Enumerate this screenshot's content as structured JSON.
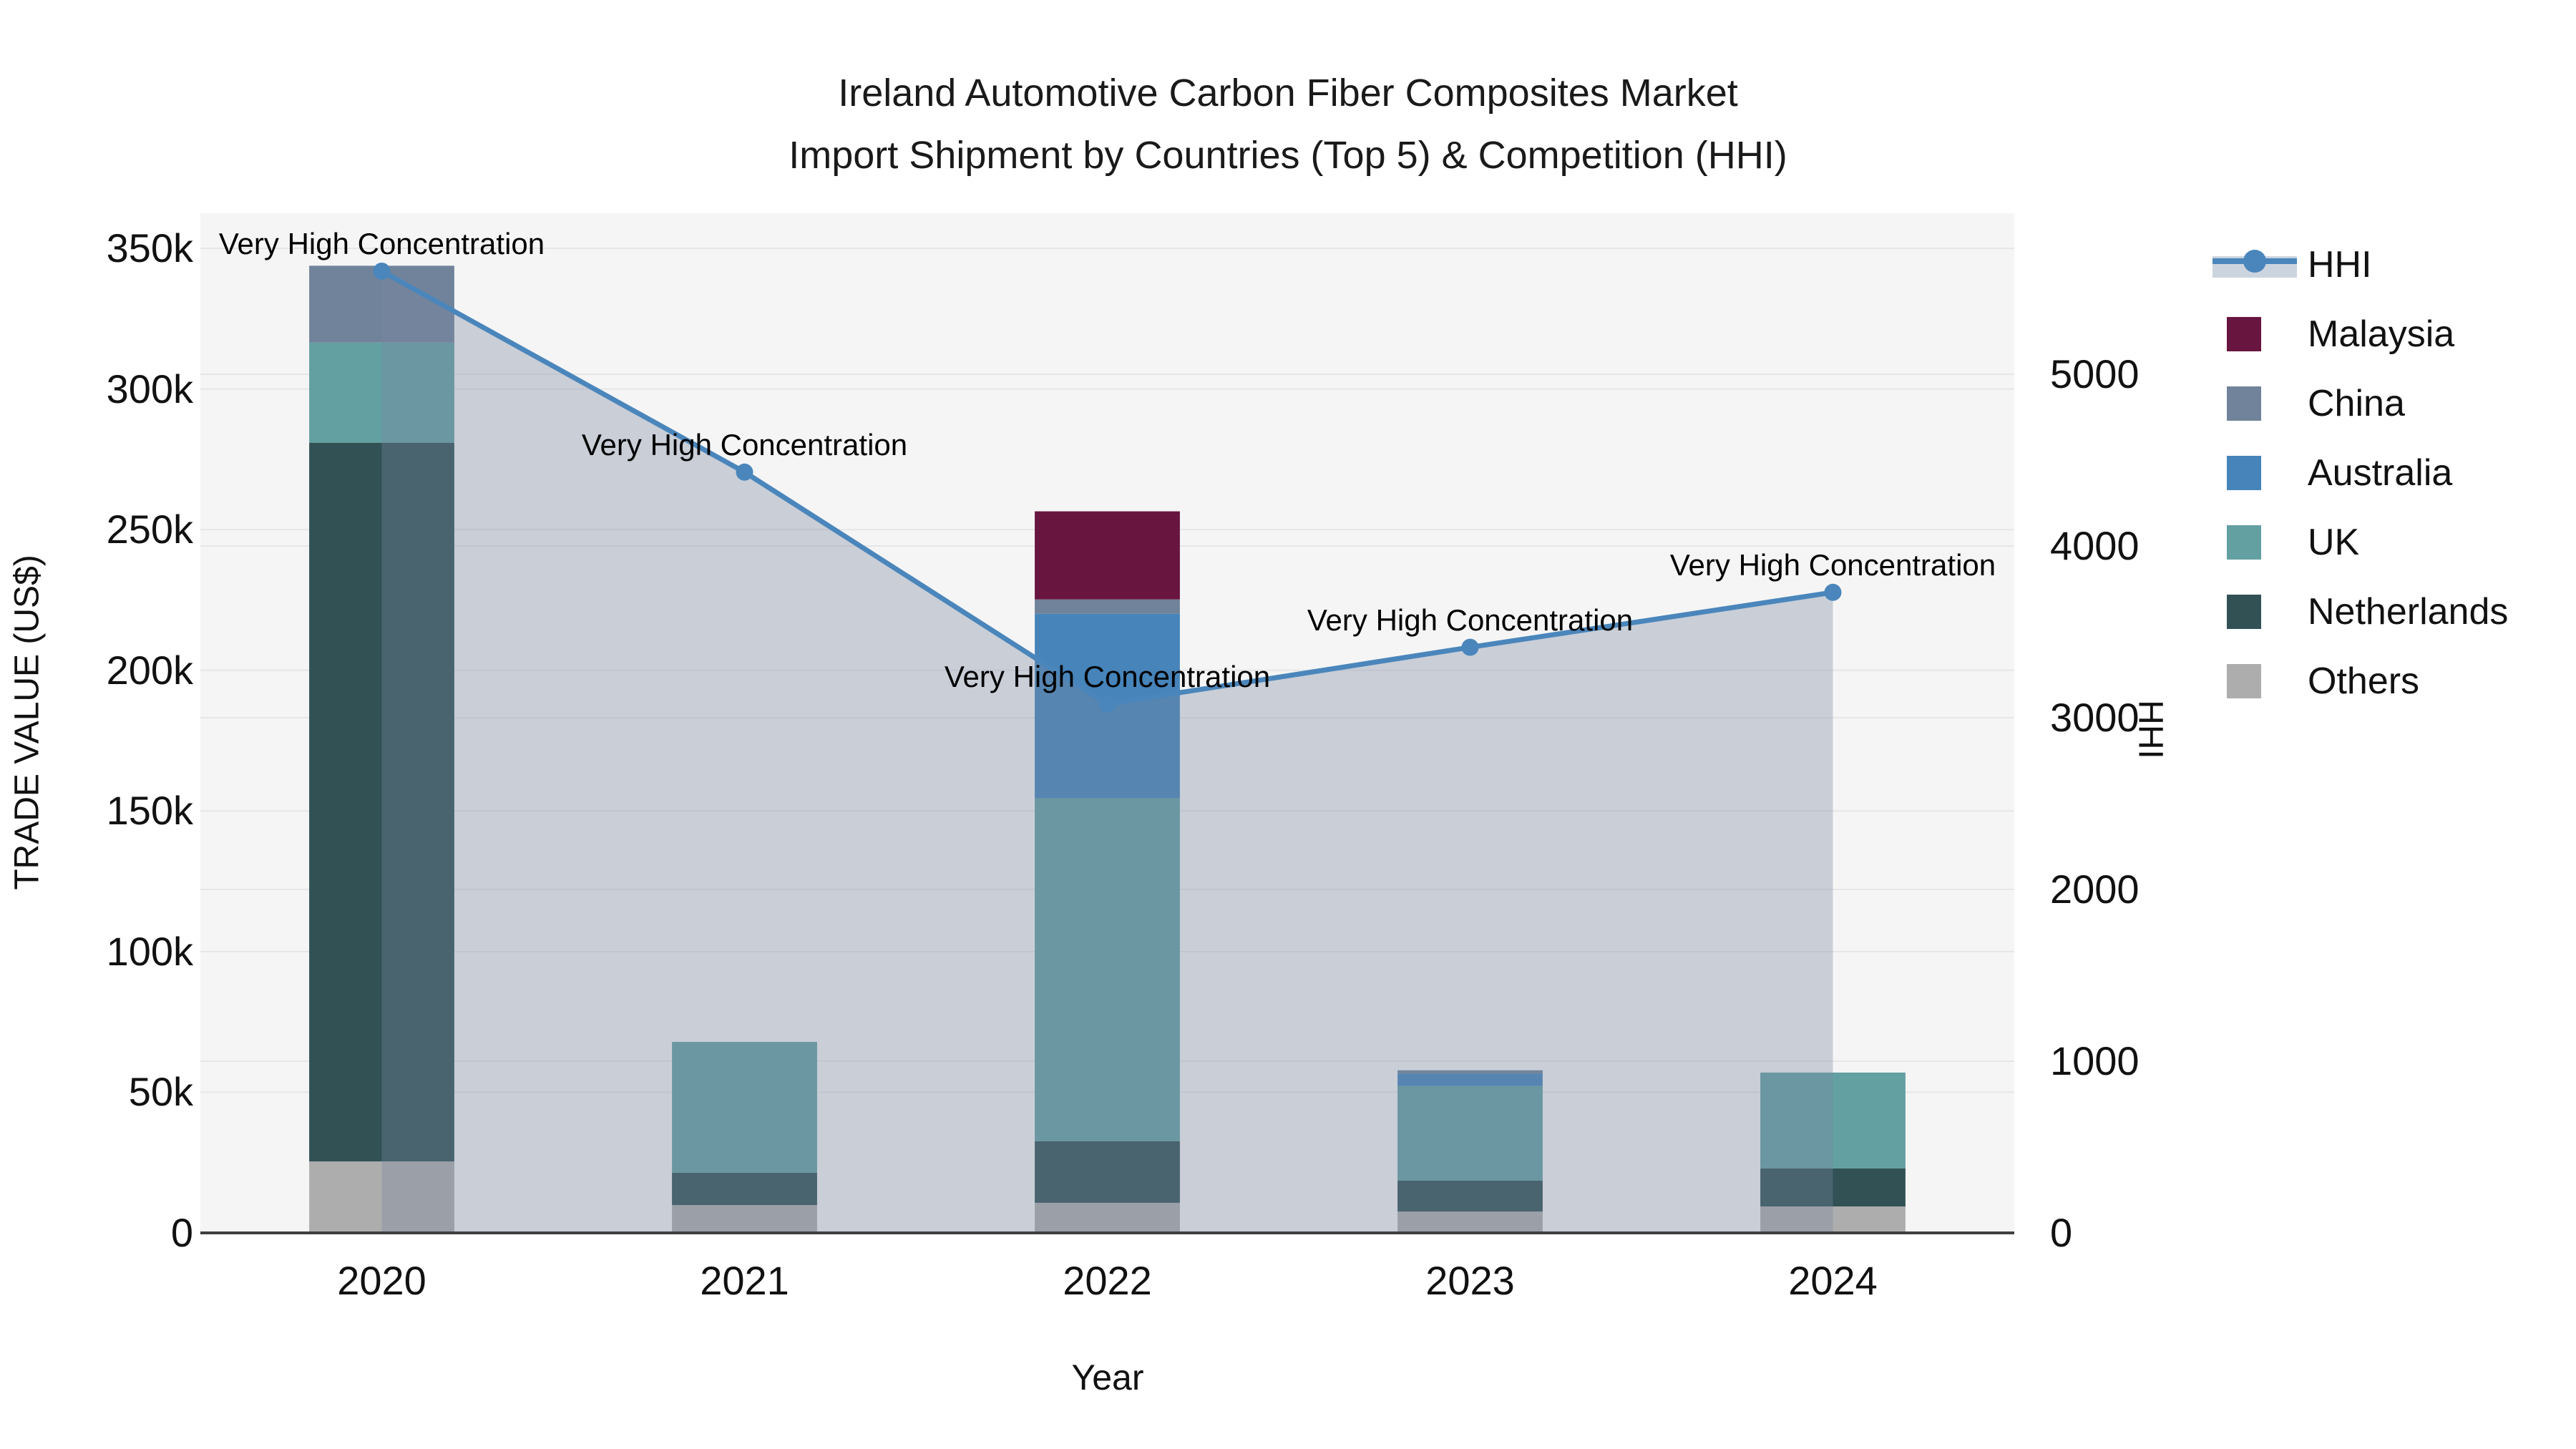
{
  "title": {
    "line1": "Ireland Automotive Carbon Fiber Composites Market",
    "line2": "Import Shipment by Countries (Top 5) & Competition (HHI)"
  },
  "axes": {
    "x": {
      "title": "Year",
      "categories": [
        "2020",
        "2021",
        "2022",
        "2023",
        "2024"
      ]
    },
    "y_left": {
      "title": "TRADE VALUE (US$)",
      "tick_labels": [
        "0",
        "50k",
        "100k",
        "150k",
        "200k",
        "250k",
        "300k",
        "350k"
      ],
      "tick_values": [
        0,
        50000,
        100000,
        150000,
        200000,
        250000,
        300000,
        350000
      ]
    },
    "y_right": {
      "title": "HHI",
      "tick_labels": [
        "0",
        "1000",
        "2000",
        "3000",
        "4000",
        "5000"
      ],
      "tick_values": [
        0,
        1000,
        2000,
        3000,
        4000,
        5000
      ]
    }
  },
  "chart_data": {
    "type": "bar+line",
    "title": "Ireland Automotive Carbon Fiber Composites Market Import Shipment by Countries (Top 5) & Competition (HHI)",
    "xlabel": "Year",
    "ylabel": "TRADE VALUE (US$)",
    "y2label": "HHI",
    "ylim": [
      0,
      350000
    ],
    "y2lim": [
      0,
      5000
    ],
    "grid": true,
    "legend_position": "right",
    "categories": [
      "2020",
      "2021",
      "2022",
      "2023",
      "2024"
    ],
    "bar_mode": "stacked",
    "series": [
      {
        "name": "Others",
        "color": "#adadad",
        "values": [
          25400,
          9900,
          10700,
          7600,
          9400
        ]
      },
      {
        "name": "Netherlands",
        "color": "#315155",
        "values": [
          255500,
          11500,
          21900,
          11000,
          13500
        ]
      },
      {
        "name": "UK",
        "color": "#63a0a2",
        "values": [
          35600,
          46500,
          121900,
          33600,
          34100
        ]
      },
      {
        "name": "Australia",
        "color": "#4684ba",
        "values": [
          0,
          0,
          65600,
          4500,
          0
        ]
      },
      {
        "name": "China",
        "color": "#71839a",
        "values": [
          27300,
          0,
          5100,
          1100,
          0
        ]
      },
      {
        "name": "Malaysia",
        "color": "#681540",
        "values": [
          0,
          0,
          31300,
          0,
          0
        ]
      }
    ],
    "line": {
      "name": "HHI",
      "axis": "right",
      "values": [
        5600,
        4430,
        3080,
        3410,
        3730
      ],
      "color": "#4a86bb",
      "area_fill": "rgba(120,135,160,0.35)"
    },
    "annotations": [
      {
        "text": "Very High Concentration",
        "category": "2020"
      },
      {
        "text": "Very High Concentration",
        "category": "2021"
      },
      {
        "text": "Very High Concentration",
        "category": "2022"
      },
      {
        "text": "Very High Concentration",
        "category": "2023"
      },
      {
        "text": "Very High Concentration",
        "category": "2024"
      }
    ]
  },
  "legend": {
    "items": [
      {
        "label": "HHI",
        "type": "line",
        "color": "#4a86bb",
        "band_color": "#ccd4e0"
      },
      {
        "label": "Malaysia",
        "type": "swatch",
        "color": "#681540"
      },
      {
        "label": "China",
        "type": "swatch",
        "color": "#71839a"
      },
      {
        "label": "Australia",
        "type": "swatch",
        "color": "#4684ba"
      },
      {
        "label": "UK",
        "type": "swatch",
        "color": "#63a0a2"
      },
      {
        "label": "Netherlands",
        "type": "swatch",
        "color": "#315155"
      },
      {
        "label": "Others",
        "type": "swatch",
        "color": "#adadad"
      }
    ]
  },
  "style": {
    "plot_bg": "#f5f5f5",
    "grid_color": "#e6e6e8",
    "axis_line_color": "#3f3f3f"
  }
}
